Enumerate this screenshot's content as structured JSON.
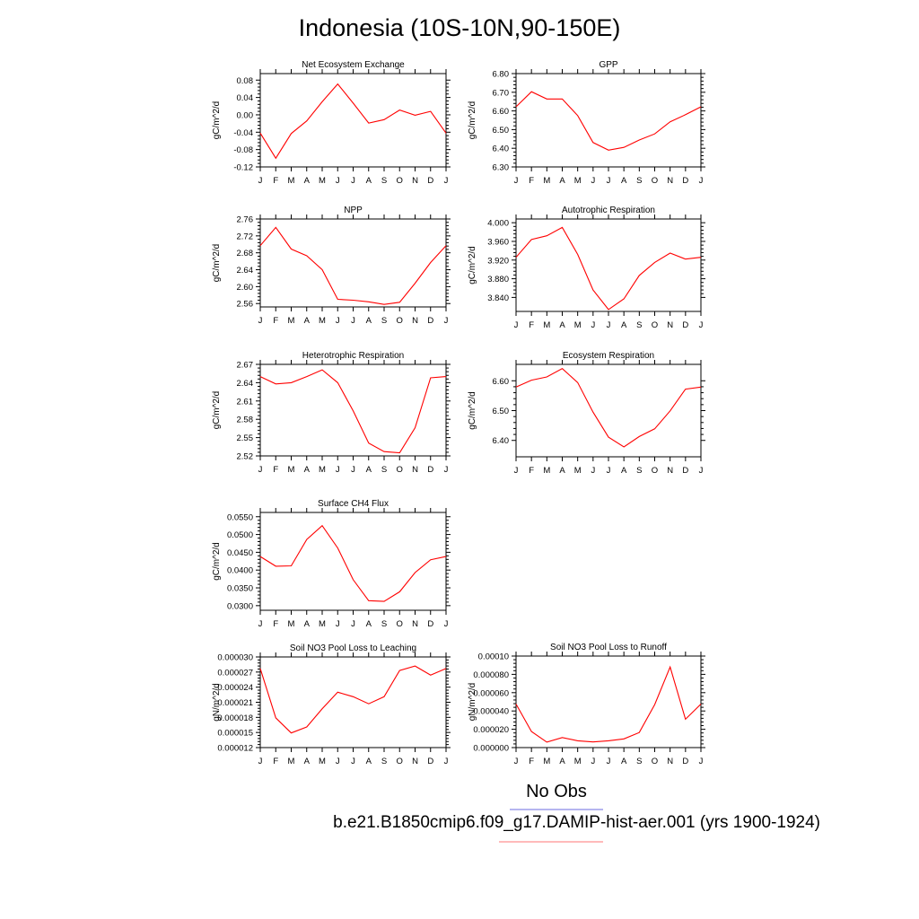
{
  "title": "Indonesia (10S-10N,90-150E)",
  "legend": {
    "obs_label": "No Obs",
    "obs_color": "#8a8ae8",
    "model_label": "b.e21.B1850cmip6.f09_g17.DAMIP-hist-aer.001 (yrs 1900-1924)",
    "model_color": "#ff0000"
  },
  "chart_data": [
    {
      "type": "line",
      "title": "Net Ecosystem Exchange",
      "ylabel": "gC/m^2/d",
      "categories": [
        "J",
        "F",
        "M",
        "A",
        "M",
        "J",
        "J",
        "A",
        "S",
        "O",
        "N",
        "D",
        "J"
      ],
      "values": [
        -0.042,
        -0.1,
        -0.043,
        -0.014,
        0.03,
        0.071,
        0.027,
        -0.019,
        -0.011,
        0.011,
        -0.001,
        0.008,
        -0.042
      ],
      "ylim": [
        -0.12,
        0.095
      ],
      "yticks": [
        -0.12,
        -0.08,
        -0.04,
        0.0,
        0.04,
        0.08
      ],
      "yticklabels": [
        "-0.12",
        "-0.08",
        "-0.04",
        "0.00",
        "0.04",
        "0.08"
      ]
    },
    {
      "type": "line",
      "title": "GPP",
      "ylabel": "gC/m^2/d",
      "categories": [
        "J",
        "F",
        "M",
        "A",
        "M",
        "J",
        "J",
        "A",
        "S",
        "O",
        "N",
        "D",
        "J"
      ],
      "values": [
        6.622,
        6.703,
        6.664,
        6.664,
        6.575,
        6.431,
        6.39,
        6.405,
        6.444,
        6.477,
        6.542,
        6.58,
        6.622
      ],
      "ylim": [
        6.3,
        6.8
      ],
      "yticks": [
        6.3,
        6.4,
        6.5,
        6.6,
        6.7,
        6.8
      ],
      "yticklabels": [
        "6.30",
        "6.40",
        "6.50",
        "6.60",
        "6.70",
        "6.80"
      ]
    },
    {
      "type": "line",
      "title": "NPP",
      "ylabel": "gC/m^2/d",
      "categories": [
        "J",
        "F",
        "M",
        "A",
        "M",
        "J",
        "J",
        "A",
        "S",
        "O",
        "N",
        "D",
        "J"
      ],
      "values": [
        2.697,
        2.74,
        2.689,
        2.673,
        2.64,
        2.57,
        2.568,
        2.564,
        2.558,
        2.563,
        2.608,
        2.657,
        2.697
      ],
      "ylim": [
        2.552,
        2.76
      ],
      "yticks": [
        2.56,
        2.6,
        2.64,
        2.68,
        2.72,
        2.76
      ],
      "yticklabels": [
        "2.56",
        "2.60",
        "2.64",
        "2.68",
        "2.72",
        "2.76"
      ]
    },
    {
      "type": "line",
      "title": "Autotrophic Respiration",
      "ylabel": "gC/m^2/d",
      "categories": [
        "J",
        "F",
        "M",
        "A",
        "M",
        "J",
        "J",
        "A",
        "S",
        "O",
        "N",
        "D",
        "J"
      ],
      "values": [
        3.926,
        3.964,
        3.972,
        3.99,
        3.932,
        3.856,
        3.814,
        3.837,
        3.887,
        3.915,
        3.935,
        3.922,
        3.926
      ],
      "ylim": [
        3.81,
        4.008
      ],
      "yticks": [
        3.84,
        3.88,
        3.92,
        3.96,
        4.0
      ],
      "yticklabels": [
        "3.840",
        "3.880",
        "3.920",
        "3.960",
        "4.000"
      ]
    },
    {
      "type": "line",
      "title": "Heterotrophic Respiration",
      "ylabel": "gC/m^2/d",
      "categories": [
        "J",
        "F",
        "M",
        "A",
        "M",
        "J",
        "J",
        "A",
        "S",
        "O",
        "N",
        "D",
        "J"
      ],
      "values": [
        2.65,
        2.638,
        2.64,
        2.65,
        2.661,
        2.64,
        2.594,
        2.541,
        2.527,
        2.525,
        2.566,
        2.648,
        2.65
      ],
      "ylim": [
        2.52,
        2.67
      ],
      "yticks": [
        2.52,
        2.55,
        2.58,
        2.61,
        2.64,
        2.67
      ],
      "yticklabels": [
        "2.52",
        "2.55",
        "2.58",
        "2.61",
        "2.64",
        "2.67"
      ]
    },
    {
      "type": "line",
      "title": "Ecosystem Respiration",
      "ylabel": "gC/m^2/d",
      "categories": [
        "J",
        "F",
        "M",
        "A",
        "M",
        "J",
        "J",
        "A",
        "S",
        "O",
        "N",
        "D",
        "J"
      ],
      "values": [
        6.579,
        6.602,
        6.613,
        6.641,
        6.594,
        6.495,
        6.411,
        6.378,
        6.413,
        6.439,
        6.499,
        6.572,
        6.579
      ],
      "ylim": [
        6.345,
        6.655
      ],
      "yticks": [
        6.4,
        6.5,
        6.6
      ],
      "yticklabels": [
        "6.40",
        "6.50",
        "6.60"
      ]
    },
    {
      "type": "line",
      "title": "Surface CH4 Flux",
      "ylabel": "gC/m^2/d",
      "categories": [
        "J",
        "F",
        "M",
        "A",
        "M",
        "J",
        "J",
        "A",
        "S",
        "O",
        "N",
        "D",
        "J"
      ],
      "values": [
        0.0438,
        0.0411,
        0.0412,
        0.0486,
        0.0525,
        0.0462,
        0.0373,
        0.0314,
        0.0312,
        0.0339,
        0.0393,
        0.0429,
        0.0438
      ],
      "ylim": [
        0.0287,
        0.0562
      ],
      "yticks": [
        0.03,
        0.035,
        0.04,
        0.045,
        0.05,
        0.055
      ],
      "yticklabels": [
        "0.0300",
        "0.0350",
        "0.0400",
        "0.0450",
        "0.0500",
        "0.0550"
      ]
    },
    {
      "type": "line",
      "title": "Soil NO3 Pool Loss to Leaching",
      "ylabel": "gN/m^2/d",
      "categories": [
        "J",
        "F",
        "M",
        "A",
        "M",
        "J",
        "J",
        "A",
        "S",
        "O",
        "N",
        "D",
        "J"
      ],
      "values": [
        2.77e-05,
        1.79e-05,
        1.49e-05,
        1.61e-05,
        1.97e-05,
        2.3e-05,
        2.21e-05,
        2.07e-05,
        2.21e-05,
        2.73e-05,
        2.82e-05,
        2.64e-05,
        2.77e-05
      ],
      "ylim": [
        1.2e-05,
        3e-05
      ],
      "yticks": [
        1.2e-05,
        1.5e-05,
        1.8e-05,
        2.1e-05,
        2.4e-05,
        2.7e-05,
        3e-05
      ],
      "yticklabels": [
        "0.000012",
        "0.000015",
        "0.000018",
        "0.000021",
        "0.000024",
        "0.000027",
        "0.000030"
      ]
    },
    {
      "type": "line",
      "title": "Soil NO3 Pool Loss to Runoff",
      "ylabel": "gN/m^2/d",
      "categories": [
        "J",
        "F",
        "M",
        "A",
        "M",
        "J",
        "J",
        "A",
        "S",
        "O",
        "N",
        "D",
        "J"
      ],
      "values": [
        4.75e-05,
        1.75e-05,
        6e-06,
        1.1e-05,
        7.5e-06,
        6.2e-06,
        7.5e-06,
        9.5e-06,
        1.65e-05,
        4.7e-05,
        8.8e-05,
        3.1e-05,
        4.75e-05
      ],
      "ylim": [
        0.0,
        0.0001
      ],
      "yticks": [
        0.0,
        2e-05,
        4e-05,
        6e-05,
        8e-05,
        0.0001
      ],
      "yticklabels": [
        "0.000000",
        "0.000020",
        "0.000040",
        "0.000060",
        "0.000080",
        "0.00010"
      ]
    }
  ]
}
